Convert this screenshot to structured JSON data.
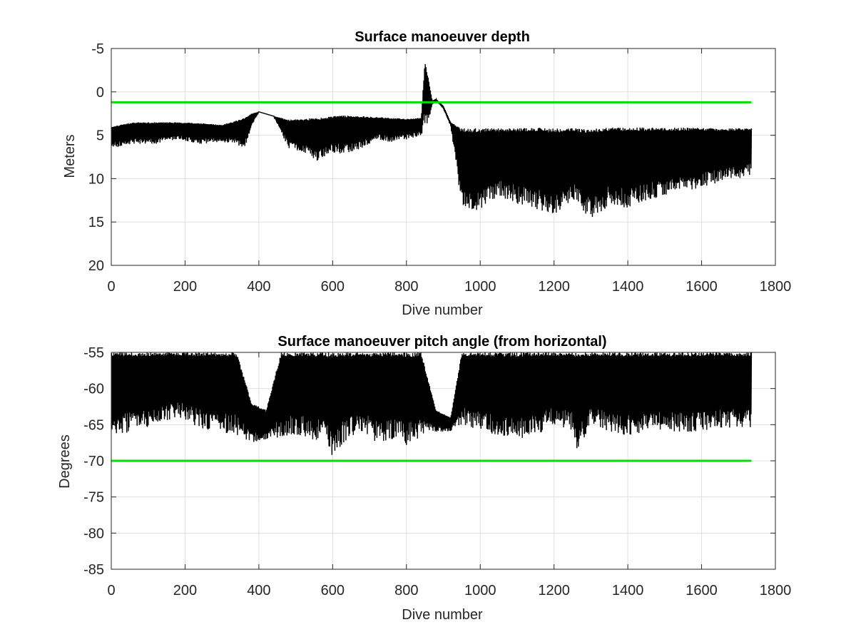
{
  "chart_data": [
    {
      "type": "line",
      "title": "Surface manoeuver depth",
      "xlabel": "Dive number",
      "ylabel": "Meters",
      "xlim": [
        0,
        1800
      ],
      "ylim": [
        -5,
        20
      ],
      "y_reversed": true,
      "grid": true,
      "xticks": [
        "0",
        "200",
        "400",
        "600",
        "800",
        "1000",
        "1200",
        "1400",
        "1600",
        "1800"
      ],
      "yticks": [
        "-5",
        "0",
        "5",
        "10",
        "15",
        "20"
      ],
      "reference_line": {
        "y": 1.2,
        "x_range": [
          0,
          1735
        ],
        "color": "#00dd00"
      },
      "series": [
        {
          "color": "#000000",
          "x": [
            0,
            60,
            120,
            180,
            240,
            300,
            340,
            360,
            380,
            400,
            440,
            480,
            520,
            560,
            600,
            640,
            680,
            720,
            760,
            800,
            840,
            850,
            860,
            870,
            880,
            900,
            920,
            950,
            1000,
            1050,
            1100,
            1150,
            1200,
            1250,
            1300,
            1350,
            1400,
            1450,
            1500,
            1550,
            1600,
            1650,
            1700,
            1735
          ],
          "top": [
            4.0,
            3.5,
            3.5,
            3.5,
            3.6,
            3.8,
            3.3,
            3.0,
            2.5,
            2.3,
            2.8,
            3.2,
            3.1,
            3.0,
            2.8,
            2.7,
            2.8,
            2.9,
            3.0,
            3.1,
            3.0,
            -3.5,
            -1.5,
            1.0,
            0.8,
            1.6,
            3.5,
            4.2,
            4.2,
            4.2,
            4.2,
            4.1,
            4.2,
            4.2,
            4.2,
            4.1,
            4.1,
            4.1,
            4.1,
            4.1,
            4.1,
            4.2,
            4.2,
            4.2
          ],
          "bottom": [
            6.5,
            6.0,
            6.0,
            5.5,
            6.0,
            5.8,
            6.0,
            6.7,
            4.0,
            2.3,
            2.8,
            6.5,
            7.0,
            8.0,
            7.0,
            7.2,
            6.5,
            5.5,
            5.8,
            5.5,
            5.0,
            4.0,
            3.5,
            1.5,
            1.0,
            2.0,
            4.0,
            13.5,
            14.0,
            12.0,
            13.0,
            13.5,
            14.5,
            12.5,
            15.0,
            13.0,
            13.5,
            12.5,
            12.0,
            11.5,
            11.0,
            10.5,
            10.0,
            9.5
          ]
        }
      ]
    },
    {
      "type": "line",
      "title": "Surface manoeuver pitch angle (from horizontal)",
      "xlabel": "Dive number",
      "ylabel": "Degrees",
      "xlim": [
        0,
        1800
      ],
      "ylim": [
        -85,
        -55
      ],
      "grid": true,
      "xticks": [
        "0",
        "200",
        "400",
        "600",
        "800",
        "1000",
        "1200",
        "1400",
        "1600",
        "1800"
      ],
      "yticks": [
        "-55",
        "-60",
        "-65",
        "-70",
        "-75",
        "-80",
        "-85"
      ],
      "reference_line": {
        "y": -70,
        "x_range": [
          0,
          1735
        ],
        "color": "#00dd00"
      },
      "series": [
        {
          "color": "#000000",
          "x": [
            0,
            60,
            120,
            180,
            240,
            300,
            340,
            380,
            420,
            460,
            500,
            540,
            580,
            600,
            640,
            680,
            720,
            760,
            800,
            840,
            880,
            920,
            950,
            1000,
            1050,
            1100,
            1150,
            1200,
            1250,
            1260,
            1300,
            1350,
            1400,
            1450,
            1500,
            1550,
            1600,
            1650,
            1700,
            1735
          ],
          "upper": [
            -55,
            -55,
            -55,
            -55,
            -55,
            -55,
            -55,
            -62,
            -63,
            -55,
            -55,
            -55,
            -55,
            -55,
            -55,
            -55,
            -55,
            -55,
            -55,
            -55,
            -63,
            -64,
            -55,
            -55,
            -55,
            -55,
            -55,
            -55,
            -55,
            -55,
            -55,
            -55,
            -55,
            -55,
            -55,
            -55,
            -55,
            -55,
            -55,
            -55
          ],
          "lower": [
            -66.5,
            -66,
            -65,
            -64,
            -65.5,
            -66,
            -66.5,
            -67.5,
            -67,
            -67,
            -66.5,
            -67,
            -67.5,
            -69.5,
            -67,
            -66,
            -67.5,
            -67,
            -68,
            -67,
            -66,
            -66,
            -65,
            -66,
            -66.5,
            -67,
            -66.5,
            -65,
            -66,
            -69.5,
            -65,
            -66,
            -66.5,
            -66,
            -66,
            -66,
            -66,
            -65.5,
            -65.5,
            -65.5
          ]
        }
      ]
    }
  ]
}
